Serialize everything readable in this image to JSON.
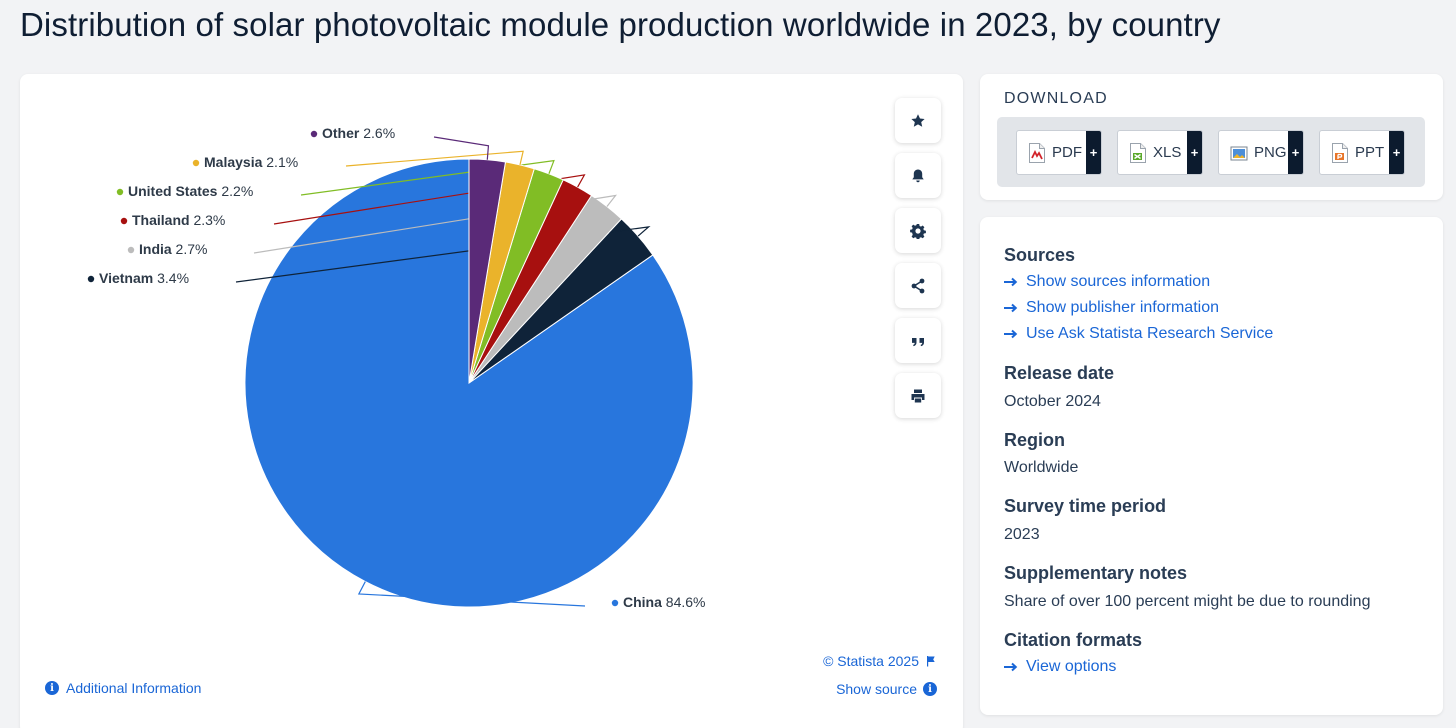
{
  "page": {
    "title": "Distribution of solar photovoltaic module production worldwide in 2023, by country"
  },
  "chart_data": {
    "type": "pie",
    "unit": "%",
    "slices": [
      {
        "label": "China",
        "value": 84.6,
        "color": "#2876dd"
      },
      {
        "label": "Vietnam",
        "value": 3.4,
        "color": "#0f2339"
      },
      {
        "label": "India",
        "value": 2.7,
        "color": "#bcbcbc"
      },
      {
        "label": "Thailand",
        "value": 2.3,
        "color": "#a7100f"
      },
      {
        "label": "United States",
        "value": 2.2,
        "color": "#81bd25"
      },
      {
        "label": "Malaysia",
        "value": 2.1,
        "color": "#eab32b"
      },
      {
        "label": "Other",
        "value": 2.6,
        "color": "#5a2a78"
      }
    ],
    "value_labels": [
      "84.6%",
      "3.4%",
      "2.7%",
      "2.3%",
      "2.2%",
      "2.1%",
      "2.6%"
    ],
    "start_angle_deg": 0,
    "direction": "counterclockwise",
    "legend": "none"
  },
  "chart_footer": {
    "credit": "© Statista 2025",
    "show_source": "Show source",
    "additional_info": "Additional Information"
  },
  "tools": [
    {
      "icon": "star-icon",
      "action": "favorite"
    },
    {
      "icon": "bell-icon",
      "action": "notifications"
    },
    {
      "icon": "gear-icon",
      "action": "settings"
    },
    {
      "icon": "share-icon",
      "action": "share"
    },
    {
      "icon": "quote-icon",
      "action": "cite"
    },
    {
      "icon": "print-icon",
      "action": "print"
    }
  ],
  "download": {
    "title": "DOWNLOAD",
    "buttons": [
      {
        "label": "PDF",
        "plus": "+",
        "icon": "pdf-file-icon"
      },
      {
        "label": "XLS",
        "plus": "+",
        "icon": "xls-file-icon"
      },
      {
        "label": "PNG",
        "plus": "+",
        "icon": "png-file-icon"
      },
      {
        "label": "PPT",
        "plus": "+",
        "icon": "ppt-file-icon"
      }
    ]
  },
  "meta": {
    "sources_heading": "Sources",
    "links": [
      "Show sources information",
      "Show publisher information",
      "Use Ask Statista Research Service"
    ],
    "release_heading": "Release date",
    "release_value": "October 2024",
    "region_heading": "Region",
    "region_value": "Worldwide",
    "survey_heading": "Survey time period",
    "survey_value": "2023",
    "notes_heading": "Supplementary notes",
    "notes_value": "Share of over 100 percent might be due to rounding",
    "citation_heading": "Citation formats",
    "citation_link": "View options"
  },
  "colors": {
    "accent_link": "#1a66d6",
    "heading": "#2a3d55",
    "background": "#f2f3f5"
  }
}
